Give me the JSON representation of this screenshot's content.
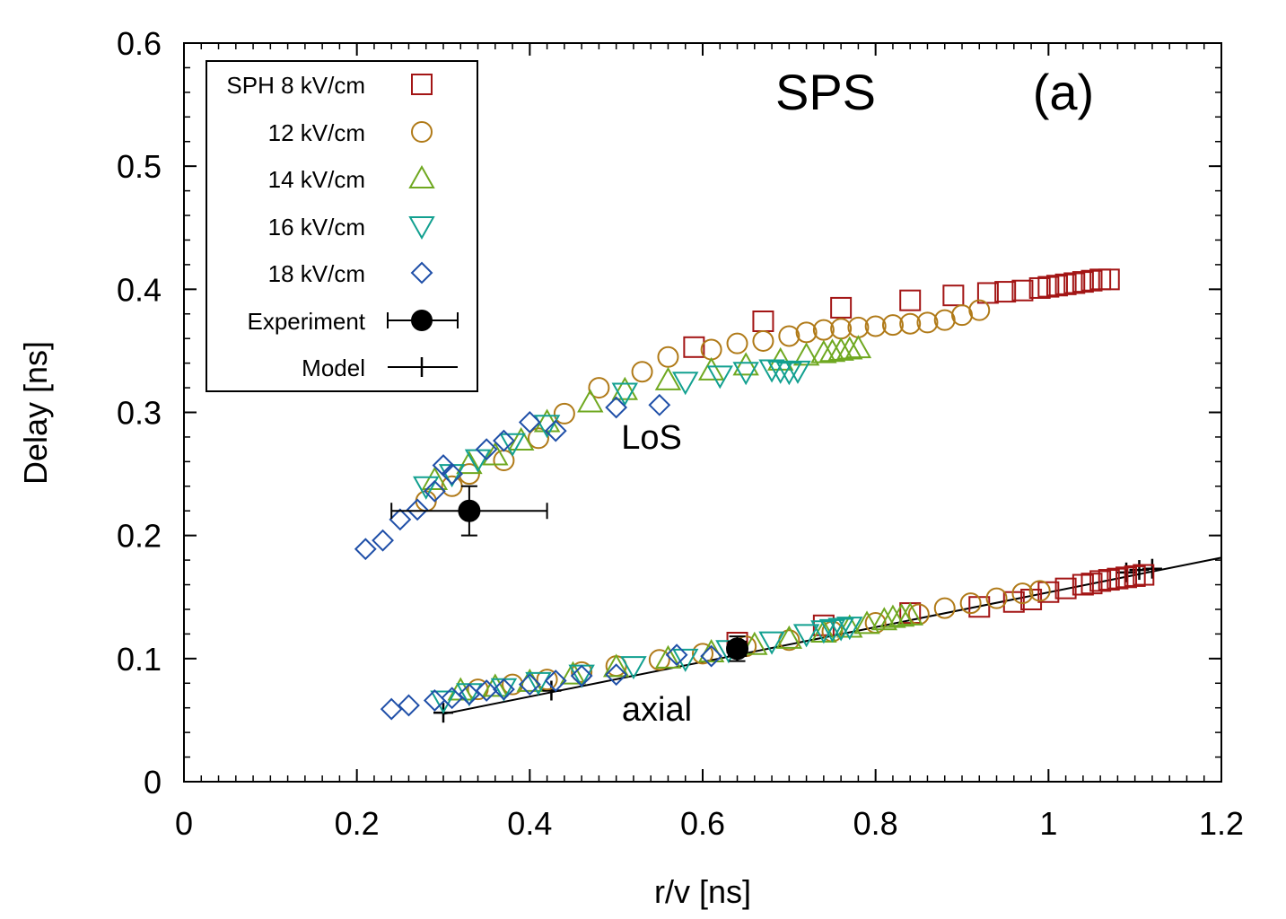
{
  "chart_data": {
    "type": "scatter",
    "title": "SPS",
    "panel_label": "(a)",
    "xlabel": "r/v [ns]",
    "ylabel": "Delay [ns]",
    "xlim": [
      0,
      1.2
    ],
    "ylim": [
      0,
      0.6
    ],
    "x_ticks": [
      "0",
      "0.2",
      "0.4",
      "0.6",
      "0.8",
      "1",
      "1.2"
    ],
    "y_ticks": [
      "0",
      "0.1",
      "0.2",
      "0.3",
      "0.4",
      "0.5",
      "0.6"
    ],
    "x_tick_values": [
      0,
      0.2,
      0.4,
      0.6,
      0.8,
      1.0,
      1.2
    ],
    "y_tick_values": [
      0,
      0.1,
      0.2,
      0.3,
      0.4,
      0.5,
      0.6
    ],
    "grid": false,
    "legend_position": "top-left",
    "annotations": [
      {
        "text": "LoS",
        "x": 0.5,
        "y": 0.28
      },
      {
        "text": "axial",
        "x": 0.5,
        "y": 0.065
      }
    ],
    "series": [
      {
        "name": "SPH 8 kV/cm",
        "marker": "square",
        "color": "#a31515",
        "points": [
          [
            0.59,
            0.353
          ],
          [
            0.67,
            0.374
          ],
          [
            0.76,
            0.385
          ],
          [
            0.84,
            0.391
          ],
          [
            0.89,
            0.395
          ],
          [
            0.93,
            0.397
          ],
          [
            0.95,
            0.398
          ],
          [
            0.97,
            0.399
          ],
          [
            0.99,
            0.401
          ],
          [
            1.0,
            0.402
          ],
          [
            1.01,
            0.403
          ],
          [
            1.02,
            0.404
          ],
          [
            1.03,
            0.405
          ],
          [
            1.04,
            0.406
          ],
          [
            1.05,
            0.407
          ],
          [
            1.06,
            0.408
          ],
          [
            1.07,
            0.408
          ],
          [
            0.64,
            0.113
          ],
          [
            0.74,
            0.127
          ],
          [
            0.84,
            0.137
          ],
          [
            0.92,
            0.142
          ],
          [
            0.96,
            0.146
          ],
          [
            0.98,
            0.148
          ],
          [
            1.0,
            0.154
          ],
          [
            1.02,
            0.157
          ],
          [
            1.04,
            0.16
          ],
          [
            1.05,
            0.161
          ],
          [
            1.06,
            0.163
          ],
          [
            1.07,
            0.164
          ],
          [
            1.08,
            0.165
          ],
          [
            1.09,
            0.166
          ],
          [
            1.1,
            0.167
          ],
          [
            1.11,
            0.168
          ]
        ]
      },
      {
        "name": "12 kV/cm",
        "marker": "circle",
        "color": "#b07a18",
        "points": [
          [
            0.28,
            0.228
          ],
          [
            0.31,
            0.24
          ],
          [
            0.33,
            0.25
          ],
          [
            0.37,
            0.261
          ],
          [
            0.41,
            0.279
          ],
          [
            0.44,
            0.299
          ],
          [
            0.48,
            0.32
          ],
          [
            0.53,
            0.333
          ],
          [
            0.56,
            0.345
          ],
          [
            0.61,
            0.351
          ],
          [
            0.64,
            0.356
          ],
          [
            0.67,
            0.358
          ],
          [
            0.7,
            0.362
          ],
          [
            0.72,
            0.365
          ],
          [
            0.74,
            0.367
          ],
          [
            0.76,
            0.368
          ],
          [
            0.78,
            0.369
          ],
          [
            0.8,
            0.37
          ],
          [
            0.82,
            0.371
          ],
          [
            0.84,
            0.372
          ],
          [
            0.86,
            0.373
          ],
          [
            0.88,
            0.375
          ],
          [
            0.9,
            0.379
          ],
          [
            0.92,
            0.383
          ],
          [
            0.34,
            0.075
          ],
          [
            0.38,
            0.079
          ],
          [
            0.42,
            0.083
          ],
          [
            0.46,
            0.089
          ],
          [
            0.5,
            0.094
          ],
          [
            0.55,
            0.099
          ],
          [
            0.6,
            0.104
          ],
          [
            0.65,
            0.11
          ],
          [
            0.7,
            0.115
          ],
          [
            0.75,
            0.122
          ],
          [
            0.8,
            0.129
          ],
          [
            0.85,
            0.136
          ],
          [
            0.88,
            0.141
          ],
          [
            0.91,
            0.145
          ],
          [
            0.94,
            0.149
          ],
          [
            0.97,
            0.153
          ],
          [
            0.99,
            0.155
          ]
        ]
      },
      {
        "name": "14 kV/cm",
        "marker": "triangle-up",
        "color": "#6fa820",
        "points": [
          [
            0.29,
            0.245
          ],
          [
            0.33,
            0.258
          ],
          [
            0.36,
            0.265
          ],
          [
            0.39,
            0.277
          ],
          [
            0.42,
            0.292
          ],
          [
            0.47,
            0.308
          ],
          [
            0.51,
            0.318
          ],
          [
            0.56,
            0.326
          ],
          [
            0.61,
            0.334
          ],
          [
            0.65,
            0.338
          ],
          [
            0.69,
            0.342
          ],
          [
            0.72,
            0.346
          ],
          [
            0.74,
            0.348
          ],
          [
            0.75,
            0.349
          ],
          [
            0.76,
            0.35
          ],
          [
            0.77,
            0.351
          ],
          [
            0.78,
            0.352
          ],
          [
            0.32,
            0.074
          ],
          [
            0.36,
            0.077
          ],
          [
            0.4,
            0.081
          ],
          [
            0.45,
            0.087
          ],
          [
            0.5,
            0.093
          ],
          [
            0.56,
            0.1
          ],
          [
            0.61,
            0.105
          ],
          [
            0.66,
            0.111
          ],
          [
            0.7,
            0.116
          ],
          [
            0.74,
            0.121
          ],
          [
            0.77,
            0.125
          ],
          [
            0.79,
            0.128
          ],
          [
            0.81,
            0.131
          ],
          [
            0.82,
            0.133
          ],
          [
            0.83,
            0.134
          ],
          [
            0.84,
            0.135
          ]
        ]
      },
      {
        "name": "16 kV/cm",
        "marker": "triangle-down",
        "color": "#12a090",
        "points": [
          [
            0.28,
            0.24
          ],
          [
            0.31,
            0.25
          ],
          [
            0.34,
            0.262
          ],
          [
            0.38,
            0.275
          ],
          [
            0.42,
            0.29
          ],
          [
            0.51,
            0.316
          ],
          [
            0.58,
            0.325
          ],
          [
            0.62,
            0.33
          ],
          [
            0.65,
            0.333
          ],
          [
            0.68,
            0.335
          ],
          [
            0.69,
            0.334
          ],
          [
            0.7,
            0.333
          ],
          [
            0.71,
            0.334
          ],
          [
            0.3,
            0.066
          ],
          [
            0.33,
            0.072
          ],
          [
            0.37,
            0.076
          ],
          [
            0.41,
            0.081
          ],
          [
            0.46,
            0.087
          ],
          [
            0.52,
            0.094
          ],
          [
            0.58,
            0.1
          ],
          [
            0.63,
            0.107
          ],
          [
            0.68,
            0.114
          ],
          [
            0.72,
            0.12
          ],
          [
            0.74,
            0.123
          ],
          [
            0.75,
            0.124
          ],
          [
            0.76,
            0.125
          ],
          [
            0.77,
            0.126
          ]
        ]
      },
      {
        "name": "18 kV/cm",
        "marker": "diamond",
        "color": "#1f4fa8",
        "points": [
          [
            0.21,
            0.189
          ],
          [
            0.23,
            0.196
          ],
          [
            0.25,
            0.213
          ],
          [
            0.27,
            0.221
          ],
          [
            0.29,
            0.236
          ],
          [
            0.31,
            0.25
          ],
          [
            0.3,
            0.257
          ],
          [
            0.35,
            0.27
          ],
          [
            0.37,
            0.277
          ],
          [
            0.4,
            0.292
          ],
          [
            0.43,
            0.285
          ],
          [
            0.5,
            0.304
          ],
          [
            0.55,
            0.306
          ],
          [
            0.24,
            0.059
          ],
          [
            0.26,
            0.062
          ],
          [
            0.29,
            0.066
          ],
          [
            0.31,
            0.068
          ],
          [
            0.33,
            0.071
          ],
          [
            0.35,
            0.074
          ],
          [
            0.37,
            0.075
          ],
          [
            0.4,
            0.079
          ],
          [
            0.43,
            0.082
          ],
          [
            0.46,
            0.086
          ],
          [
            0.5,
            0.087
          ],
          [
            0.57,
            0.103
          ],
          [
            0.61,
            0.102
          ]
        ]
      }
    ],
    "experiment": {
      "name": "Experiment",
      "marker": "filled-circle",
      "color": "#000000",
      "points": [
        {
          "x": 0.33,
          "y": 0.22,
          "xerr": [
            0.24,
            0.42
          ],
          "yerr": [
            0.2,
            0.24
          ]
        },
        {
          "x": 0.64,
          "y": 0.108,
          "xerr": [
            0.63,
            0.65
          ],
          "yerr": [
            0.098,
            0.118
          ]
        }
      ]
    },
    "model": {
      "name": "Model",
      "marker": "plus",
      "color": "#000000",
      "line": [
        [
          0.3,
          0.055
        ],
        [
          1.2,
          0.182
        ]
      ],
      "points": [
        [
          0.3,
          0.056
        ],
        [
          0.425,
          0.074
        ],
        [
          0.64,
          0.106
        ],
        [
          1.09,
          0.17
        ],
        [
          1.105,
          0.172
        ],
        [
          1.12,
          0.173
        ]
      ]
    }
  }
}
